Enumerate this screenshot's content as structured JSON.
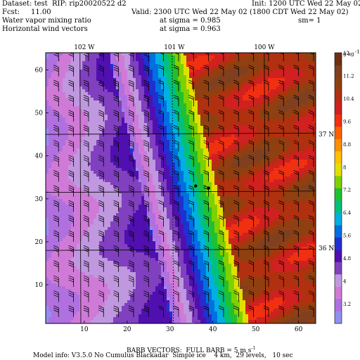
{
  "header": {
    "dataset_line": "Dataset: test  RIP: rip20020522 d2",
    "fcst_line": "Fcst:     11.00",
    "init_line": "Init: 1200 UTC Wed 22 May 02",
    "valid_line": "Valid: 2300 UTC Wed 22 May 02 (1800 CDT Wed 22 May 02)",
    "field1_name": "Water vapor mixing ratio",
    "field1_level": "at sigma = 0.985",
    "field1_extra": "sm= 1",
    "field2_name": "Horizontal wind vectors",
    "field2_level": "at sigma = 0.963"
  },
  "footer": {
    "barb_note": "BARB VECTORS:  FULL BARB = 5 m s",
    "barb_exp": "-1",
    "model_info": "Model info: V3.5.0 No Cumulus Blackadar  Simple ice    4 km,  29 levels,   10 sec"
  },
  "chart_data": {
    "type": "heatmap",
    "x_ticks": [
      10,
      20,
      30,
      40,
      50,
      60
    ],
    "y_ticks": [
      10,
      20,
      30,
      40,
      50,
      60
    ],
    "xlim": [
      1,
      64
    ],
    "ylim": [
      1,
      64
    ],
    "longitude_labels": [
      {
        "label": "102 W",
        "x": 10
      },
      {
        "label": "101 W",
        "x": 31
      },
      {
        "label": "100 W",
        "x": 52
      }
    ],
    "latitude_labels": [
      {
        "label": "37 N",
        "y": 45
      },
      {
        "label": "36 N",
        "y": 18.5
      }
    ],
    "colorbar": {
      "unit": "g kg",
      "unit_exp": "-1",
      "tick_labels": [
        "3.2",
        "4",
        "4.8",
        "5.6",
        "6.4",
        "7.2",
        "8",
        "8.8",
        "9.6",
        "10.4",
        "11.2",
        "12"
      ],
      "colors": [
        "#9090f0",
        "#b070e0",
        "#d07ad8",
        "#c098e0",
        "#8040c0",
        "#5010b0",
        "#2030d0",
        "#0070e0",
        "#00b0e0",
        "#00c080",
        "#20c030",
        "#80d000",
        "#e0e000",
        "#ffc000",
        "#ff9000",
        "#ff6000",
        "#f03010",
        "#d02020",
        "#b03010",
        "#904010",
        "#804020",
        "#703010"
      ]
    },
    "dots": [
      {
        "x": 36,
        "y": 33
      },
      {
        "x": 39,
        "y": 32.5
      }
    ]
  }
}
